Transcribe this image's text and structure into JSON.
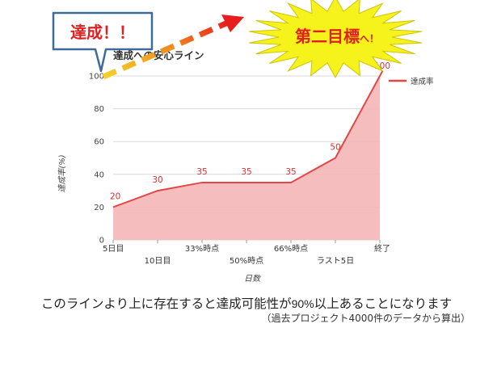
{
  "chart_data": {
    "type": "area",
    "title": "達成への安心ライン",
    "xlabel": "日数",
    "ylabel": "達成率(%)",
    "ylim": [
      0,
      100
    ],
    "yticks": [
      0,
      20,
      40,
      60,
      80,
      100
    ],
    "categories": [
      "5日目",
      "10日目",
      "33%時点",
      "50%時点",
      "66%時点",
      "ラスト5日",
      "終了"
    ],
    "series": [
      {
        "name": "達成率",
        "values": [
          20,
          30,
          35,
          35,
          35,
          50,
          100
        ]
      }
    ],
    "data_labels": [
      "20",
      "30",
      "35",
      "35",
      "35",
      "50",
      "100"
    ],
    "legend": "right",
    "grid": true,
    "colors": {
      "line": "#e04848",
      "fill": "#f4b6b6",
      "label": "#d93030",
      "grid": "#d9d9d9"
    }
  },
  "callouts": {
    "achieved": "達成！！",
    "second_goal": "第二目標",
    "second_goal_suffix": "へ！"
  },
  "caption": {
    "main_prefix": "このラインより上に存在すると達成可能性が",
    "main_pct": "90%",
    "main_suffix": "以上あることになります",
    "sub": "（過去プロジェクト4000件のデータから算出）"
  }
}
